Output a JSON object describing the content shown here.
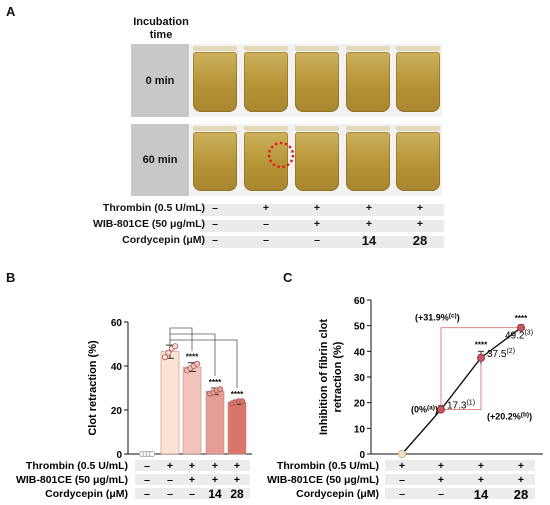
{
  "panel_a": {
    "letter": "A",
    "incubation_header_line1": "Incubation",
    "incubation_header_line2": "time",
    "time_labels": [
      "0 min",
      "60 min"
    ],
    "conditions": [
      {
        "label": "Thrombin (0.5 U/mL)",
        "values": [
          "–",
          "+",
          "+",
          "+",
          "+"
        ]
      },
      {
        "label": "WIB-801CE (50 μg/mL)",
        "values": [
          "–",
          "–",
          "+",
          "+",
          "+"
        ]
      },
      {
        "label": "Cordycepin (μM)",
        "values": [
          "–",
          "–",
          "–",
          "14",
          "28"
        ]
      }
    ],
    "colors": {
      "liquid": "#b99a3e",
      "circle": "#e0241c"
    }
  },
  "panel_b": {
    "letter": "B",
    "conditions": [
      {
        "label": "Thrombin (0.5 U/mL)",
        "values": [
          "–",
          "+",
          "+",
          "+",
          "+"
        ]
      },
      {
        "label": "WIB-801CE (50 μg/mL)",
        "values": [
          "–",
          "–",
          "+",
          "+",
          "+"
        ]
      },
      {
        "label": "Cordycepin (μM)",
        "values": [
          "–",
          "–",
          "–",
          "14",
          "28"
        ]
      }
    ]
  },
  "panel_c": {
    "letter": "C",
    "conditions": [
      {
        "label": "Thrombin (0.5 U/mL)",
        "values": [
          "+",
          "+",
          "+",
          "+"
        ]
      },
      {
        "label": "WIB-801CE (50 μg/mL)",
        "values": [
          "–",
          "+",
          "+",
          "+"
        ]
      },
      {
        "label": "Cordycepin (μM)",
        "values": [
          "–",
          "–",
          "14",
          "28"
        ]
      }
    ]
  },
  "chart_data": [
    {
      "type": "bar",
      "ylabel": "Clot retraction (%)",
      "ylim": [
        0,
        60
      ],
      "yticks": [
        0,
        20,
        40,
        60
      ],
      "values": [
        0,
        46.5,
        39.5,
        28.5,
        23.5
      ],
      "errors": [
        0,
        3,
        2,
        1.5,
        1
      ],
      "significance": [
        "",
        "",
        "****",
        "****",
        "****"
      ],
      "bar_colors": [
        "#fbe6d8",
        "#fbe3d3",
        "#f2c2bc",
        "#e69c96",
        "#d9766c"
      ],
      "points": [
        [
          0,
          0,
          0,
          0
        ],
        [
          44,
          46,
          48,
          49
        ],
        [
          38,
          39,
          40,
          41
        ],
        [
          27.5,
          28,
          29,
          29.5
        ],
        [
          23,
          23.5,
          24,
          24
        ]
      ]
    },
    {
      "type": "line",
      "ylabel": "Inhibition of fibrin clot retraction  (%)",
      "ylim": [
        0,
        60
      ],
      "yticks": [
        0,
        10,
        20,
        30,
        40,
        50,
        60
      ],
      "values": [
        0,
        17.3,
        37.5,
        49.2
      ],
      "errors": [
        0,
        1.5,
        2.5,
        1
      ],
      "point_labels": [
        "",
        "17.3",
        "37.5",
        "49.2"
      ],
      "point_label_superscripts": [
        "",
        "(1)",
        "(2)",
        "(3)"
      ],
      "significance": [
        "",
        "",
        "****",
        "****"
      ],
      "annotations": {
        "base": "(0%",
        "base_sup": "(a)",
        "base_close": ")",
        "upper": "(+31.9%",
        "upper_sup": "(c)",
        "upper_close": ")",
        "lower": "(+20.2%",
        "lower_sup": "(b)",
        "lower_close": ")"
      },
      "colors": {
        "marker": "#c9555e",
        "first_marker": "#f4dfc8",
        "line": "#111111",
        "bracket": "#d97a7a"
      }
    }
  ]
}
